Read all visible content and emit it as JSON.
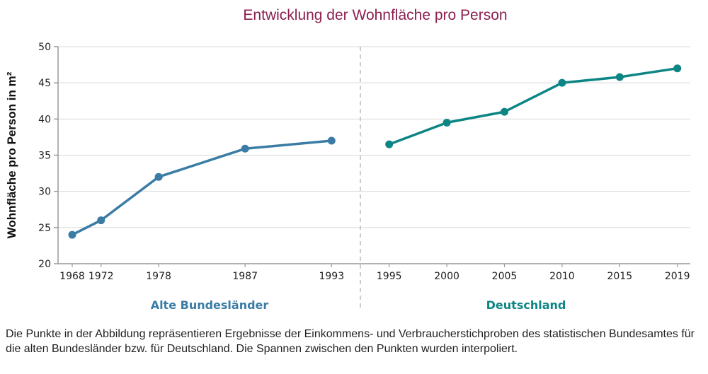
{
  "chart_data": {
    "type": "line",
    "title": "Entwicklung der Wohnfläche pro Person",
    "xlabel": "",
    "ylabel": "Wohnfläche pro Person in m²",
    "ylim": [
      20,
      50
    ],
    "yticks": [
      20,
      25,
      30,
      35,
      40,
      45,
      50
    ],
    "grid": true,
    "categories": [
      "1968",
      "1972",
      "1978",
      "1987",
      "1993",
      "1995",
      "2000",
      "2005",
      "2010",
      "2015",
      "2019"
    ],
    "series": [
      {
        "name": "Alte Bundesländer",
        "color": "#3a7ca5",
        "x": [
          "1968",
          "1972",
          "1978",
          "1987",
          "1993"
        ],
        "values": [
          24.0,
          26.0,
          32.0,
          35.9,
          37.0
        ]
      },
      {
        "name": "Deutschland",
        "color": "#0e8585",
        "x": [
          "1995",
          "2000",
          "2005",
          "2010",
          "2015",
          "2019"
        ],
        "values": [
          36.5,
          39.5,
          41.0,
          45.0,
          45.8,
          47.0
        ]
      }
    ],
    "divider_between": [
      "1993",
      "1995"
    ],
    "group_labels": [
      "Alte Bundesländer",
      "Deutschland"
    ]
  },
  "caption": "Die Punkte in der Abbildung repräsentieren Ergebnisse der Einkommens- und Verbraucherstichproben des statistischen Bundesamtes für die alten Bundesländer bzw. für Deutschland. Die Spannen zwischen den Punkten wurden interpoliert."
}
